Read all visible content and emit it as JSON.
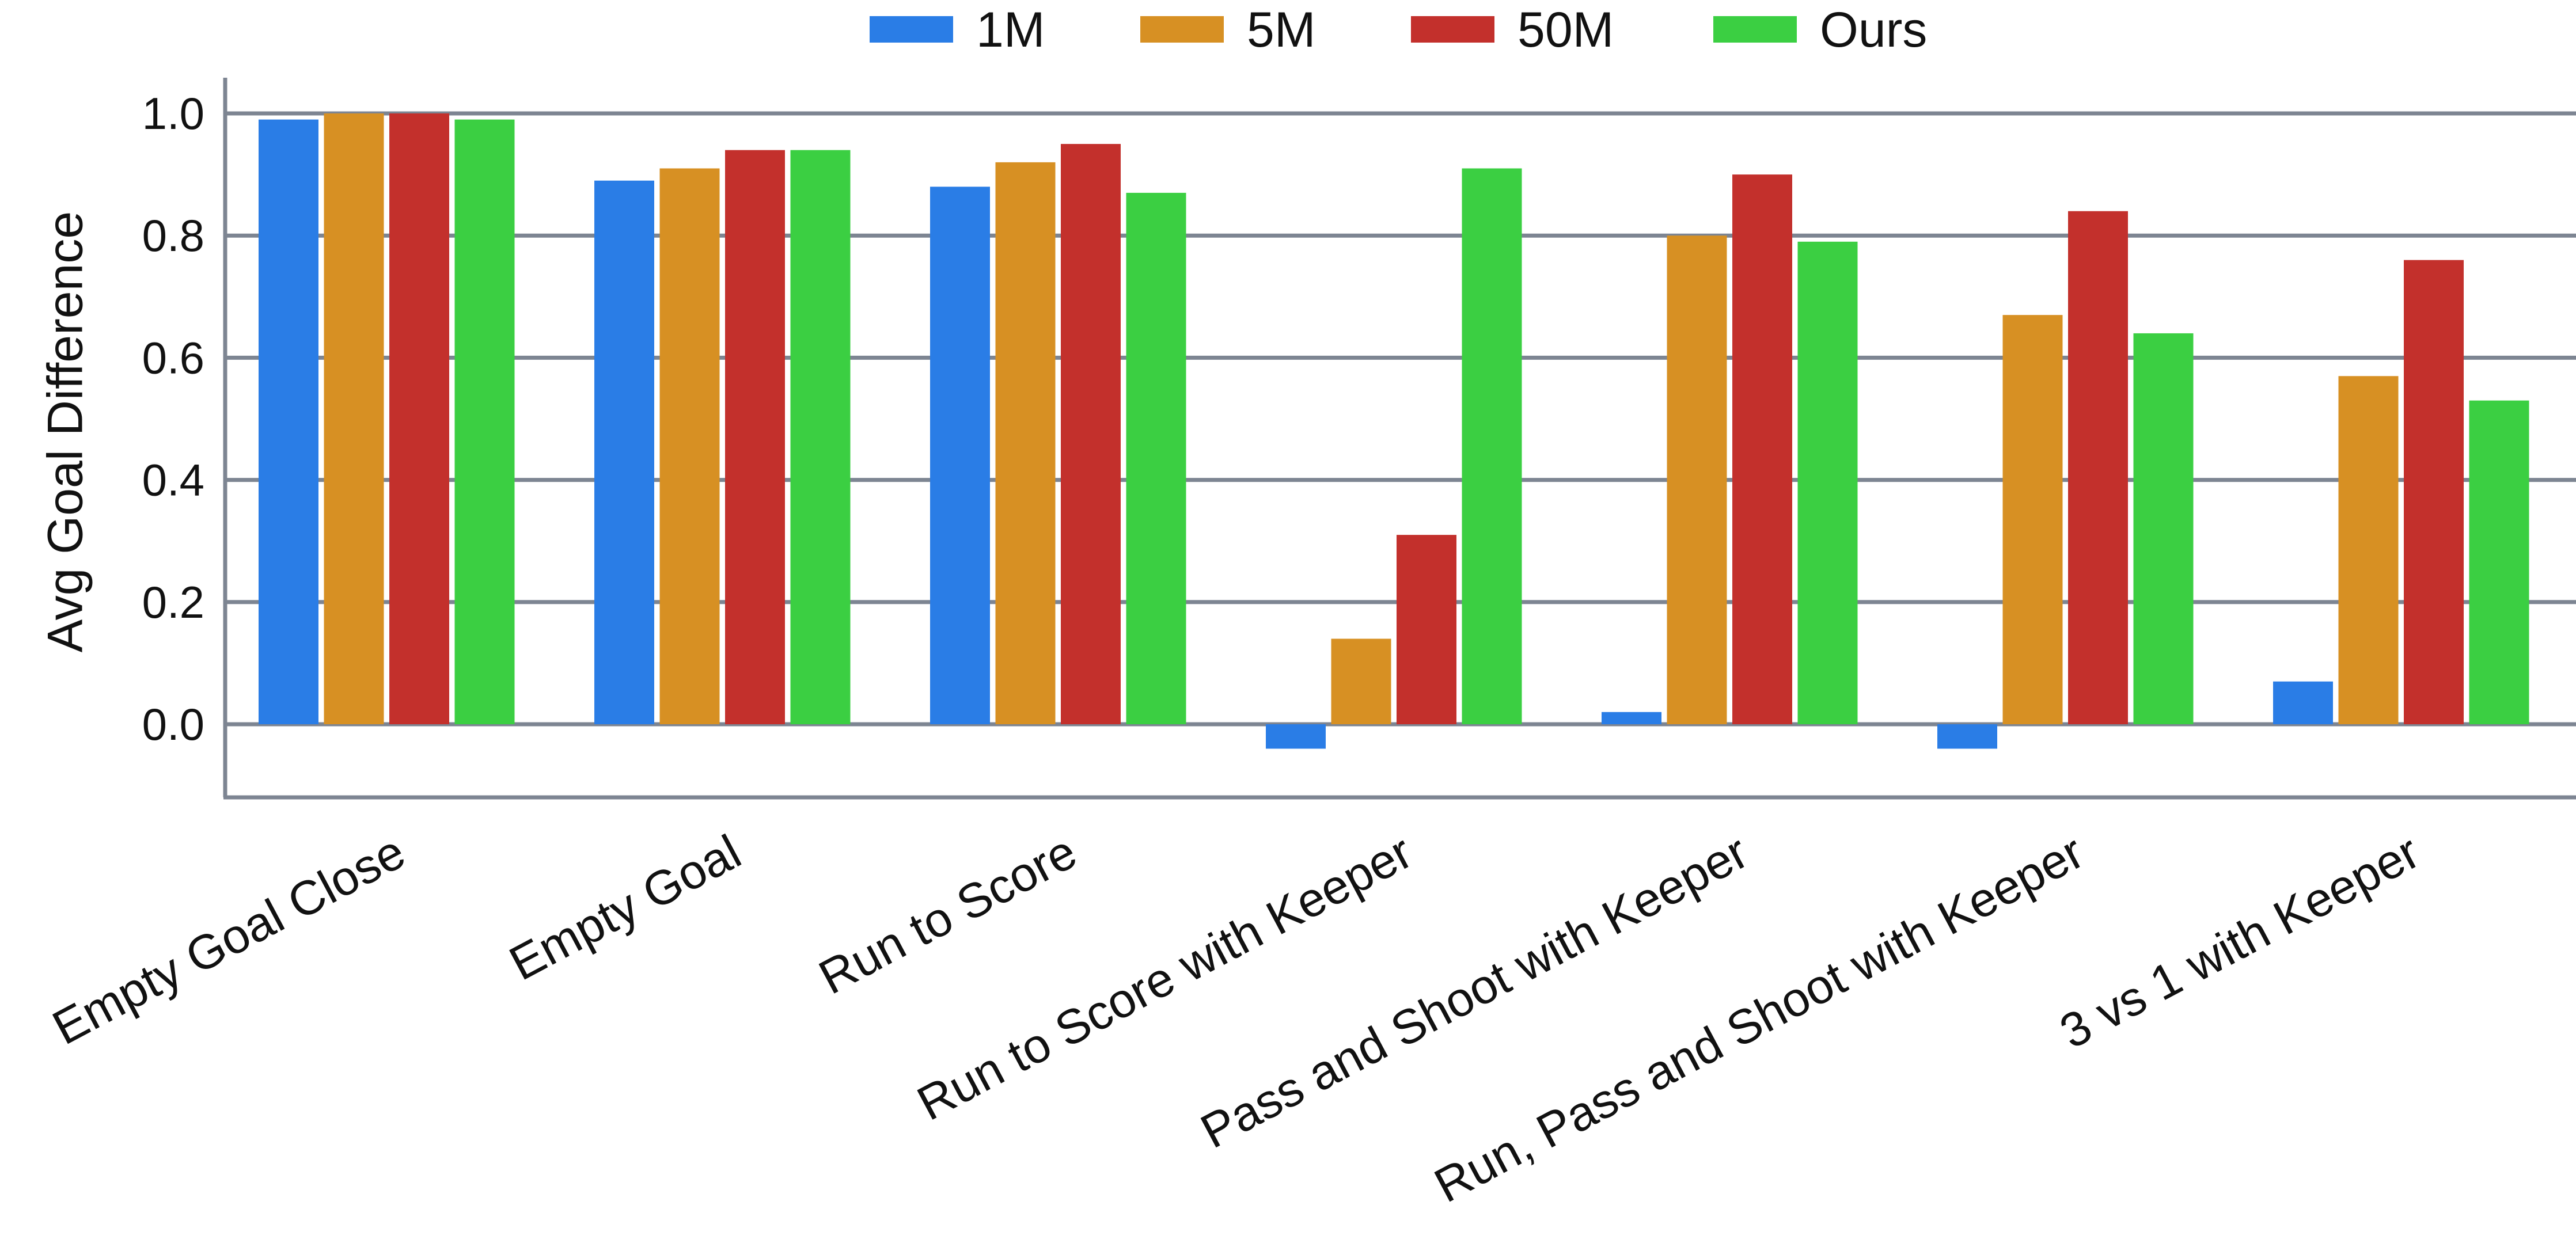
{
  "chart_data": {
    "type": "bar",
    "title": "",
    "xlabel": "",
    "ylabel": "Avg Goal Difference",
    "ylim": [
      -0.12,
      1.06
    ],
    "yticks": [
      "0.0",
      "0.2",
      "0.4",
      "0.6",
      "0.8",
      "1.0"
    ],
    "grid": true,
    "legend_position": "top",
    "categories": [
      "Empty Goal Close",
      "Empty Goal",
      "Run to Score",
      "Run to Score with Keeper",
      "Pass and Shoot with Keeper",
      "Run, Pass and Shoot with Keeper",
      "3 vs 1 with Keeper"
    ],
    "series": [
      {
        "name": "1M",
        "color": "#2a7de6",
        "values": [
          0.99,
          0.89,
          0.88,
          -0.04,
          0.02,
          -0.04,
          0.07
        ]
      },
      {
        "name": "5M",
        "color": "#d79023",
        "values": [
          1.0,
          0.91,
          0.92,
          0.14,
          0.8,
          0.67,
          0.57
        ]
      },
      {
        "name": "50M",
        "color": "#c3302c",
        "values": [
          1.0,
          0.94,
          0.95,
          0.31,
          0.9,
          0.84,
          0.76
        ]
      },
      {
        "name": "Ours",
        "color": "#3bcf42",
        "values": [
          0.99,
          0.94,
          0.87,
          0.91,
          0.79,
          0.64,
          0.53
        ]
      }
    ]
  }
}
